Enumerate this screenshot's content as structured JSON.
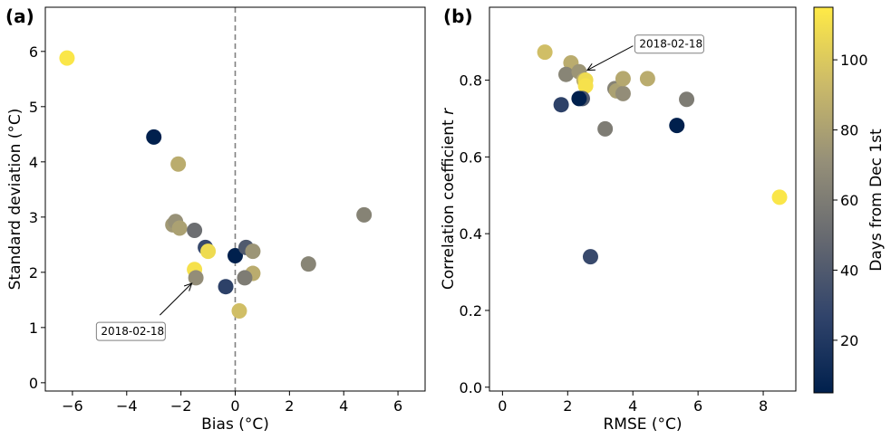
{
  "chart_data": [
    {
      "type": "scatter",
      "panel_label": "(a)",
      "xlabel": "Bias (°C)",
      "ylabel": "Standard deviation (°C)",
      "xlim": [
        -7,
        7
      ],
      "ylim": [
        -0.15,
        6.8
      ],
      "xticks": [
        -6,
        -4,
        -2,
        0,
        2,
        4,
        6
      ],
      "yticks": [
        0,
        1,
        2,
        3,
        4,
        5,
        6
      ],
      "xtick_labels": [
        "−6",
        "−4",
        "−2",
        "0",
        "2",
        "4",
        "6"
      ],
      "ytick_labels": [
        "0",
        "1",
        "2",
        "3",
        "4",
        "5",
        "6"
      ],
      "reference_line": {
        "x": 0,
        "style": "dashed",
        "color": "#808080"
      },
      "annotation": {
        "text": "2018-02-18",
        "x": -1.6,
        "y": 1.8,
        "text_x": -4.95,
        "text_y": 0.93
      },
      "points": [
        {
          "x": -6.2,
          "y": 5.88,
          "day": 113
        },
        {
          "x": -3.0,
          "y": 4.45,
          "day": 5
        },
        {
          "x": -2.1,
          "y": 3.96,
          "day": 86
        },
        {
          "x": -2.3,
          "y": 2.86,
          "day": 76
        },
        {
          "x": -2.2,
          "y": 2.92,
          "day": 72
        },
        {
          "x": -2.05,
          "y": 2.8,
          "day": 80
        },
        {
          "x": -1.5,
          "y": 2.76,
          "day": 52
        },
        {
          "x": -1.1,
          "y": 2.45,
          "day": 30
        },
        {
          "x": -1.0,
          "y": 2.38,
          "day": 108
        },
        {
          "x": -1.5,
          "y": 2.05,
          "day": 111
        },
        {
          "x": -1.45,
          "y": 1.9,
          "day": 70
        },
        {
          "x": -0.35,
          "y": 1.74,
          "day": 25
        },
        {
          "x": 0.0,
          "y": 2.3,
          "day": 5
        },
        {
          "x": 0.4,
          "y": 2.45,
          "day": 40
        },
        {
          "x": 0.65,
          "y": 2.38,
          "day": 74
        },
        {
          "x": 0.65,
          "y": 1.98,
          "day": 86
        },
        {
          "x": 0.35,
          "y": 1.9,
          "day": 60
        },
        {
          "x": 0.15,
          "y": 1.3,
          "day": 95
        },
        {
          "x": 2.7,
          "y": 2.15,
          "day": 65
        },
        {
          "x": 4.75,
          "y": 3.04,
          "day": 64
        }
      ]
    },
    {
      "type": "scatter",
      "panel_label": "(b)",
      "xlabel": "RMSE (°C)",
      "ylabel": "Correlation coefficient r",
      "ylabel_main": "Correlation coefficient ",
      "ylabel_symbol": "r",
      "xlim": [
        -0.4,
        9.0
      ],
      "ylim": [
        -0.01,
        0.99
      ],
      "xticks": [
        0,
        2,
        4,
        6,
        8
      ],
      "yticks": [
        0.0,
        0.2,
        0.4,
        0.6,
        0.8
      ],
      "xtick_labels": [
        "0",
        "2",
        "4",
        "6",
        "8"
      ],
      "ytick_labels": [
        "0.0",
        "0.2",
        "0.4",
        "0.6",
        "0.8"
      ],
      "annotation": {
        "text": "2018-02-18",
        "x": 2.6,
        "y": 0.826,
        "text_x": 4.2,
        "text_y": 0.894
      },
      "points": [
        {
          "x": 1.3,
          "y": 0.873,
          "day": 95
        },
        {
          "x": 2.1,
          "y": 0.845,
          "day": 86
        },
        {
          "x": 1.95,
          "y": 0.815,
          "day": 65
        },
        {
          "x": 2.35,
          "y": 0.822,
          "day": 74
        },
        {
          "x": 2.5,
          "y": 0.8,
          "day": 86
        },
        {
          "x": 2.55,
          "y": 0.8,
          "day": 108
        },
        {
          "x": 2.55,
          "y": 0.785,
          "day": 111
        },
        {
          "x": 1.8,
          "y": 0.736,
          "day": 25
        },
        {
          "x": 2.45,
          "y": 0.752,
          "day": 40
        },
        {
          "x": 2.35,
          "y": 0.752,
          "day": 5
        },
        {
          "x": 3.45,
          "y": 0.778,
          "day": 64
        },
        {
          "x": 3.5,
          "y": 0.772,
          "day": 80
        },
        {
          "x": 3.7,
          "y": 0.765,
          "day": 70
        },
        {
          "x": 3.7,
          "y": 0.804,
          "day": 84
        },
        {
          "x": 4.45,
          "y": 0.804,
          "day": 86
        },
        {
          "x": 3.15,
          "y": 0.673,
          "day": 60
        },
        {
          "x": 5.65,
          "y": 0.75,
          "day": 60
        },
        {
          "x": 5.35,
          "y": 0.682,
          "day": 5
        },
        {
          "x": 2.7,
          "y": 0.34,
          "day": 30
        },
        {
          "x": 8.5,
          "y": 0.495,
          "day": 113
        }
      ]
    }
  ],
  "colorbar": {
    "label": "Days from Dec 1st",
    "min": 5,
    "max": 115,
    "ticks": [
      20,
      40,
      60,
      80,
      100
    ],
    "tick_labels": [
      "20",
      "40",
      "60",
      "80",
      "100"
    ],
    "colormap": "cividis",
    "stops": [
      "#00204d",
      "#31446b",
      "#666970",
      "#958f78",
      "#cbba69",
      "#ffea46"
    ]
  }
}
